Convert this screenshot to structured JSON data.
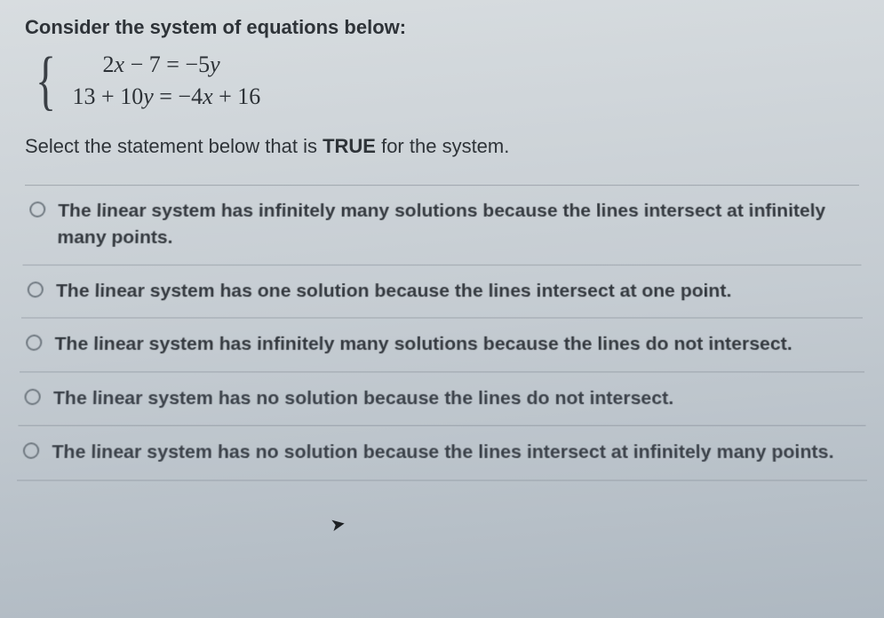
{
  "question_intro": "Consider the system of equations below:",
  "equations": {
    "eq1_left": "2",
    "eq1_var1": "x",
    "eq1_mid": " − 7 = −5",
    "eq1_var2": "y",
    "eq2_left": "13 + 10",
    "eq2_var1": "y",
    "eq2_mid": " = −4",
    "eq2_var2": "x",
    "eq2_right": " + 16"
  },
  "prompt_prefix": "Select the statement below that is ",
  "prompt_true": "TRUE",
  "prompt_suffix": " for the system.",
  "options": [
    "The linear system has infinitely many solutions because the lines intersect at infinitely many points.",
    "The linear system has one solution because the lines intersect at one point.",
    "The linear system has infinitely many solutions because the lines do not intersect.",
    "The linear system has no solution because the lines do not intersect.",
    "The linear system has no solution because the lines intersect at infinitely many points."
  ],
  "style": {
    "background_gradient": [
      "#d8dde0",
      "#c5ccd2",
      "#aeb8c1"
    ],
    "text_color": "#2a2e33",
    "divider_color": "rgba(120,128,137,0.5)",
    "radio_border": "#6f7880",
    "intro_fontsize": 22,
    "eq_fontsize": 26,
    "prompt_fontsize": 22,
    "option_fontsize": 21
  }
}
